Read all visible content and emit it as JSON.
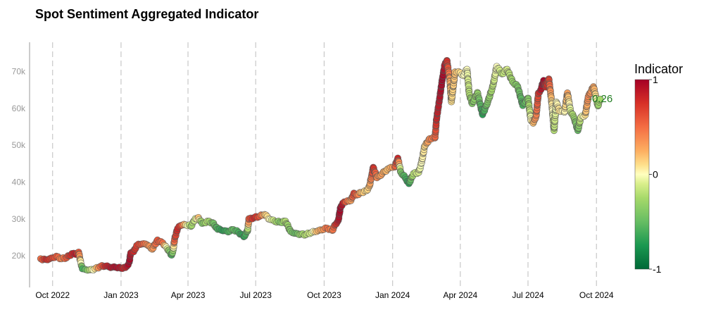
{
  "chart_data": {
    "type": "scatter",
    "title": "Spot Sentiment Aggregated Indicator",
    "xlabel": "",
    "ylabel": "",
    "x_ticks": [
      "Oct 2022",
      "Jan 2023",
      "Apr 2023",
      "Jul 2023",
      "Oct 2023",
      "Jan 2024",
      "Apr 2024",
      "Jul 2024",
      "Oct 2024"
    ],
    "y_ticks": [
      "20k",
      "30k",
      "40k",
      "50k",
      "60k",
      "70k"
    ],
    "xlim": [
      "2022-09-01",
      "2024-11-01"
    ],
    "ylim": [
      12000,
      77000
    ],
    "vertical_gridlines": "dashed at each x tick",
    "colorscale": {
      "name": "RdYlGn reversed",
      "low": "#006837",
      "mid": "#ffffbf",
      "high": "#a50026"
    },
    "colorbar": {
      "title": "Indicator",
      "ticks": [
        "1",
        "0",
        "-1"
      ],
      "range": [
        -1,
        1
      ]
    },
    "last_value_label": {
      "text": "-0.26",
      "color": "#1e7b1e"
    },
    "series": [
      {
        "points": [
          {
            "x": "2022-09-15",
            "y": 19200,
            "c": 0.5
          },
          {
            "x": "2022-09-22",
            "y": 19000,
            "c": 0.8
          },
          {
            "x": "2022-09-29",
            "y": 19400,
            "c": 0.7
          },
          {
            "x": "2022-10-06",
            "y": 19900,
            "c": 0.6
          },
          {
            "x": "2022-10-13",
            "y": 19200,
            "c": 0.4
          },
          {
            "x": "2022-10-20",
            "y": 19500,
            "c": 0.6
          },
          {
            "x": "2022-10-27",
            "y": 20600,
            "c": 0.8
          },
          {
            "x": "2022-11-01",
            "y": 20400,
            "c": 0.9
          },
          {
            "x": "2022-11-05",
            "y": 21000,
            "c": 0.6
          },
          {
            "x": "2022-11-08",
            "y": 18000,
            "c": 0.0
          },
          {
            "x": "2022-11-10",
            "y": 16500,
            "c": -0.6
          },
          {
            "x": "2022-11-14",
            "y": 16300,
            "c": -0.5
          },
          {
            "x": "2022-11-20",
            "y": 16200,
            "c": -0.2
          },
          {
            "x": "2022-11-27",
            "y": 16500,
            "c": 0.1
          },
          {
            "x": "2022-12-04",
            "y": 17100,
            "c": 0.5
          },
          {
            "x": "2022-12-11",
            "y": 17200,
            "c": 0.8
          },
          {
            "x": "2022-12-18",
            "y": 16800,
            "c": 0.9
          },
          {
            "x": "2022-12-25",
            "y": 16850,
            "c": 0.95
          },
          {
            "x": "2023-01-01",
            "y": 16600,
            "c": 0.9
          },
          {
            "x": "2023-01-05",
            "y": 16900,
            "c": 0.8
          },
          {
            "x": "2023-01-09",
            "y": 17200,
            "c": 0.9
          },
          {
            "x": "2023-01-12",
            "y": 18300,
            "c": 1.0
          },
          {
            "x": "2023-01-14",
            "y": 20800,
            "c": 0.9
          },
          {
            "x": "2023-01-18",
            "y": 21100,
            "c": 0.8
          },
          {
            "x": "2023-01-22",
            "y": 22800,
            "c": 0.7
          },
          {
            "x": "2023-01-29",
            "y": 23200,
            "c": 0.6
          },
          {
            "x": "2023-02-05",
            "y": 23000,
            "c": 0.4
          },
          {
            "x": "2023-02-12",
            "y": 21800,
            "c": 0.3
          },
          {
            "x": "2023-02-19",
            "y": 24300,
            "c": 0.6
          },
          {
            "x": "2023-02-26",
            "y": 23500,
            "c": 0.5
          },
          {
            "x": "2023-03-03",
            "y": 22400,
            "c": 0.0
          },
          {
            "x": "2023-03-10",
            "y": 20200,
            "c": -0.6
          },
          {
            "x": "2023-03-12",
            "y": 21500,
            "c": -0.3
          },
          {
            "x": "2023-03-14",
            "y": 24500,
            "c": 0.6
          },
          {
            "x": "2023-03-18",
            "y": 27400,
            "c": 0.8
          },
          {
            "x": "2023-03-22",
            "y": 28200,
            "c": 0.7
          },
          {
            "x": "2023-03-29",
            "y": 28400,
            "c": 0.1
          },
          {
            "x": "2023-04-05",
            "y": 28000,
            "c": -0.3
          },
          {
            "x": "2023-04-11",
            "y": 30100,
            "c": -0.1
          },
          {
            "x": "2023-04-15",
            "y": 30400,
            "c": 0.2
          },
          {
            "x": "2023-04-20",
            "y": 28800,
            "c": -0.4
          },
          {
            "x": "2023-04-27",
            "y": 29400,
            "c": -0.2
          },
          {
            "x": "2023-05-04",
            "y": 29000,
            "c": -0.4
          },
          {
            "x": "2023-05-11",
            "y": 27200,
            "c": -0.6
          },
          {
            "x": "2023-05-18",
            "y": 26800,
            "c": -0.7
          },
          {
            "x": "2023-05-25",
            "y": 26500,
            "c": -0.6
          },
          {
            "x": "2023-06-01",
            "y": 27100,
            "c": -0.5
          },
          {
            "x": "2023-06-08",
            "y": 26400,
            "c": -0.6
          },
          {
            "x": "2023-06-15",
            "y": 25200,
            "c": -0.7
          },
          {
            "x": "2023-06-20",
            "y": 26700,
            "c": -0.5
          },
          {
            "x": "2023-06-22",
            "y": 30100,
            "c": 0.6
          },
          {
            "x": "2023-06-29",
            "y": 30400,
            "c": 0.8
          },
          {
            "x": "2023-07-06",
            "y": 30700,
            "c": 0.6
          },
          {
            "x": "2023-07-13",
            "y": 31200,
            "c": 0.2
          },
          {
            "x": "2023-07-20",
            "y": 29900,
            "c": 0.0
          },
          {
            "x": "2023-07-27",
            "y": 29300,
            "c": -0.2
          },
          {
            "x": "2023-08-03",
            "y": 29100,
            "c": -0.4
          },
          {
            "x": "2023-08-10",
            "y": 29400,
            "c": -0.2
          },
          {
            "x": "2023-08-17",
            "y": 26600,
            "c": -0.4
          },
          {
            "x": "2023-08-24",
            "y": 26100,
            "c": -0.5
          },
          {
            "x": "2023-08-31",
            "y": 25900,
            "c": -0.3
          },
          {
            "x": "2023-09-07",
            "y": 25800,
            "c": -0.2
          },
          {
            "x": "2023-09-14",
            "y": 26300,
            "c": -0.1
          },
          {
            "x": "2023-09-21",
            "y": 26600,
            "c": 0.2
          },
          {
            "x": "2023-09-28",
            "y": 27000,
            "c": 0.3
          },
          {
            "x": "2023-10-05",
            "y": 27500,
            "c": 0.5
          },
          {
            "x": "2023-10-12",
            "y": 26900,
            "c": 0.4
          },
          {
            "x": "2023-10-16",
            "y": 28500,
            "c": 0.7
          },
          {
            "x": "2023-10-20",
            "y": 29600,
            "c": 0.9
          },
          {
            "x": "2023-10-23",
            "y": 33100,
            "c": 1.0
          },
          {
            "x": "2023-10-26",
            "y": 34300,
            "c": 0.9
          },
          {
            "x": "2023-10-30",
            "y": 34600,
            "c": 0.6
          },
          {
            "x": "2023-11-06",
            "y": 35000,
            "c": 0.3
          },
          {
            "x": "2023-11-10",
            "y": 37000,
            "c": 0.7
          },
          {
            "x": "2023-11-14",
            "y": 36500,
            "c": 0.5
          },
          {
            "x": "2023-11-20",
            "y": 37200,
            "c": 0.2
          },
          {
            "x": "2023-11-27",
            "y": 37700,
            "c": 0.1
          },
          {
            "x": "2023-12-01",
            "y": 39000,
            "c": 0.2
          },
          {
            "x": "2023-12-04",
            "y": 41900,
            "c": 0.5
          },
          {
            "x": "2023-12-06",
            "y": 44000,
            "c": 0.8
          },
          {
            "x": "2023-12-11",
            "y": 41200,
            "c": 0.4
          },
          {
            "x": "2023-12-18",
            "y": 42300,
            "c": 0.3
          },
          {
            "x": "2023-12-25",
            "y": 43500,
            "c": 0.2
          },
          {
            "x": "2024-01-01",
            "y": 44000,
            "c": 0.3
          },
          {
            "x": "2024-01-04",
            "y": 44100,
            "c": 0.5
          },
          {
            "x": "2024-01-08",
            "y": 46500,
            "c": 0.8
          },
          {
            "x": "2024-01-12",
            "y": 42700,
            "c": -0.4
          },
          {
            "x": "2024-01-18",
            "y": 41200,
            "c": -0.6
          },
          {
            "x": "2024-01-23",
            "y": 39600,
            "c": -0.7
          },
          {
            "x": "2024-01-29",
            "y": 42300,
            "c": -0.2
          },
          {
            "x": "2024-02-05",
            "y": 42600,
            "c": -0.1
          },
          {
            "x": "2024-02-09",
            "y": 45300,
            "c": 0.0
          },
          {
            "x": "2024-02-13",
            "y": 49700,
            "c": 0.1
          },
          {
            "x": "2024-02-20",
            "y": 51800,
            "c": 0.4
          },
          {
            "x": "2024-02-27",
            "y": 52000,
            "c": 0.5
          },
          {
            "x": "2024-02-29",
            "y": 57000,
            "c": 0.8
          },
          {
            "x": "2024-03-04",
            "y": 62500,
            "c": 0.9
          },
          {
            "x": "2024-03-08",
            "y": 68200,
            "c": 1.0
          },
          {
            "x": "2024-03-11",
            "y": 71800,
            "c": 0.9
          },
          {
            "x": "2024-03-14",
            "y": 73000,
            "c": 0.8
          },
          {
            "x": "2024-03-18",
            "y": 67500,
            "c": 0.3
          },
          {
            "x": "2024-03-20",
            "y": 61800,
            "c": 0.1
          },
          {
            "x": "2024-03-25",
            "y": 69900,
            "c": 0.2
          },
          {
            "x": "2024-04-01",
            "y": 69700,
            "c": 0.1
          },
          {
            "x": "2024-04-05",
            "y": 68900,
            "c": 0.0
          },
          {
            "x": "2024-04-10",
            "y": 70600,
            "c": 0.0
          },
          {
            "x": "2024-04-13",
            "y": 64000,
            "c": -0.2
          },
          {
            "x": "2024-04-17",
            "y": 61300,
            "c": -0.4
          },
          {
            "x": "2024-04-24",
            "y": 64300,
            "c": -0.3
          },
          {
            "x": "2024-05-01",
            "y": 58300,
            "c": -0.7
          },
          {
            "x": "2024-05-08",
            "y": 61800,
            "c": -0.4
          },
          {
            "x": "2024-05-15",
            "y": 66200,
            "c": -0.2
          },
          {
            "x": "2024-05-20",
            "y": 71400,
            "c": 0.0
          },
          {
            "x": "2024-05-27",
            "y": 69400,
            "c": -0.2
          },
          {
            "x": "2024-06-03",
            "y": 70600,
            "c": -0.1
          },
          {
            "x": "2024-06-10",
            "y": 67300,
            "c": -0.3
          },
          {
            "x": "2024-06-17",
            "y": 66000,
            "c": -0.4
          },
          {
            "x": "2024-06-24",
            "y": 60800,
            "c": -0.6
          },
          {
            "x": "2024-07-01",
            "y": 62800,
            "c": -0.4
          },
          {
            "x": "2024-07-05",
            "y": 56700,
            "c": 0.0
          },
          {
            "x": "2024-07-08",
            "y": 56000,
            "c": 0.2
          },
          {
            "x": "2024-07-12",
            "y": 58000,
            "c": 0.4
          },
          {
            "x": "2024-07-15",
            "y": 64200,
            "c": 0.7
          },
          {
            "x": "2024-07-18",
            "y": 65000,
            "c": 0.9
          },
          {
            "x": "2024-07-22",
            "y": 67600,
            "c": 1.0
          },
          {
            "x": "2024-07-25",
            "y": 65800,
            "c": 0.8
          },
          {
            "x": "2024-07-29",
            "y": 68000,
            "c": 0.7
          },
          {
            "x": "2024-08-02",
            "y": 61400,
            "c": 0.1
          },
          {
            "x": "2024-08-05",
            "y": 54000,
            "c": -0.2
          },
          {
            "x": "2024-08-08",
            "y": 61700,
            "c": 0.0
          },
          {
            "x": "2024-08-12",
            "y": 59300,
            "c": 0.1
          },
          {
            "x": "2024-08-19",
            "y": 59000,
            "c": 0.0
          },
          {
            "x": "2024-08-23",
            "y": 64200,
            "c": 0.3
          },
          {
            "x": "2024-08-27",
            "y": 59400,
            "c": -0.1
          },
          {
            "x": "2024-09-01",
            "y": 57400,
            "c": -0.3
          },
          {
            "x": "2024-09-06",
            "y": 54000,
            "c": -0.5
          },
          {
            "x": "2024-09-10",
            "y": 57600,
            "c": -0.1
          },
          {
            "x": "2024-09-16",
            "y": 58200,
            "c": 0.1
          },
          {
            "x": "2024-09-20",
            "y": 63200,
            "c": 0.4
          },
          {
            "x": "2024-09-27",
            "y": 65900,
            "c": 0.3
          },
          {
            "x": "2024-09-30",
            "y": 63300,
            "c": 0.1
          },
          {
            "x": "2024-10-03",
            "y": 60700,
            "c": -0.3
          },
          {
            "x": "2024-10-06",
            "y": 62500,
            "c": -0.26
          }
        ]
      }
    ]
  }
}
